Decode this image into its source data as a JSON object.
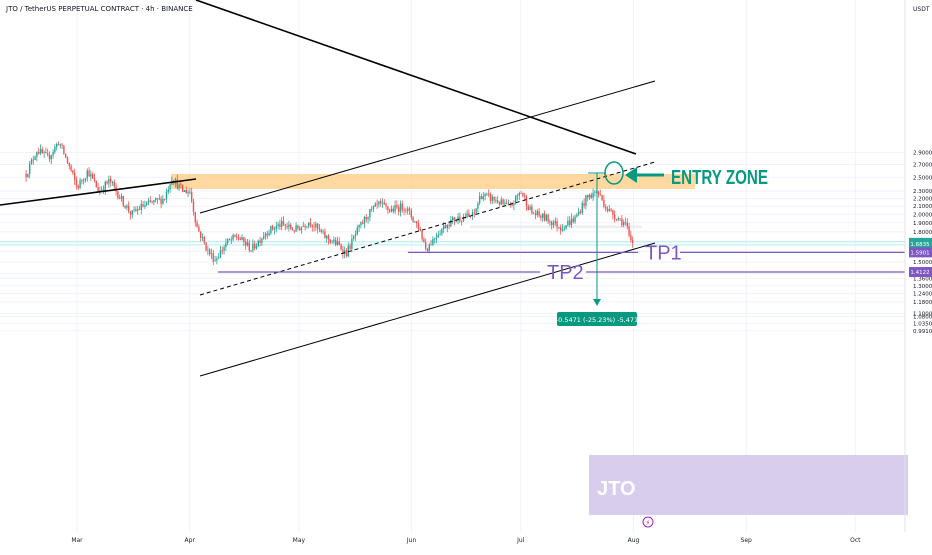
{
  "header": {
    "symbol_line": "JTO / TetherUS PERPETUAL CONTRACT · 4h · BINANCE"
  },
  "price_axis": {
    "unit": "USDT"
  },
  "chart_data": {
    "type": "candlestick",
    "title": "JTO / TetherUS PERPETUAL CONTRACT · 4h · BINANCE",
    "ylabel": "USDT",
    "y_scale": "log",
    "y_ticks": [
      "2.9000",
      "2.7000",
      "2.5000",
      "2.3000",
      "2.2000",
      "2.1000",
      "2.0000",
      "1.9000",
      "1.8000",
      "1.7000",
      "1.6000",
      "1.5000",
      "1.4000",
      "1.3600",
      "1.3000",
      "1.2400",
      "1.1800",
      "1.1000",
      "1.0800",
      "1.0350",
      "0.9910"
    ],
    "x_ticks": [
      "Mar",
      "Apr",
      "May",
      "Jun",
      "Jul",
      "Aug",
      "Sep",
      "Oct"
    ],
    "price_path": [
      [
        "Feb 15",
        2.55
      ],
      [
        "Feb 18",
        2.95
      ],
      [
        "Feb 21",
        2.8
      ],
      [
        "Feb 24",
        3.1
      ],
      [
        "Feb 27",
        2.65
      ],
      [
        "Mar 1",
        2.35
      ],
      [
        "Mar 4",
        2.6
      ],
      [
        "Mar 7",
        2.3
      ],
      [
        "Mar 10",
        2.45
      ],
      [
        "Mar 13",
        2.2
      ],
      [
        "Mar 16",
        2.0
      ],
      [
        "Mar 19",
        2.1
      ],
      [
        "Mar 22",
        2.15
      ],
      [
        "Mar 25",
        2.2
      ],
      [
        "Mar 27",
        2.5
      ],
      [
        "Mar 30",
        2.3
      ],
      [
        "Apr 1",
        2.3
      ],
      [
        "Apr 3",
        1.85
      ],
      [
        "Apr 6",
        1.6
      ],
      [
        "Apr 8",
        1.52
      ],
      [
        "Apr 11",
        1.68
      ],
      [
        "Apr 14",
        1.75
      ],
      [
        "Apr 18",
        1.62
      ],
      [
        "Apr 22",
        1.8
      ],
      [
        "Apr 26",
        1.88
      ],
      [
        "Apr 30",
        1.82
      ],
      [
        "May 4",
        1.92
      ],
      [
        "May 8",
        1.75
      ],
      [
        "May 12",
        1.66
      ],
      [
        "May 14",
        1.58
      ],
      [
        "May 17",
        1.8
      ],
      [
        "May 20",
        2.0
      ],
      [
        "May 23",
        2.12
      ],
      [
        "May 26",
        2.05
      ],
      [
        "May 30",
        2.1
      ],
      [
        "Jun 3",
        1.85
      ],
      [
        "Jun 5",
        1.62
      ],
      [
        "Jun 8",
        1.78
      ],
      [
        "Jun 11",
        1.9
      ],
      [
        "Jun 14",
        1.96
      ],
      [
        "Jun 18",
        1.98
      ],
      [
        "Jun 20",
        2.25
      ],
      [
        "Jun 24",
        2.18
      ],
      [
        "Jun 28",
        2.08
      ],
      [
        "Jul 1",
        2.3
      ],
      [
        "Jul 4",
        2.02
      ],
      [
        "Jul 8",
        1.95
      ],
      [
        "Jul 12",
        1.85
      ],
      [
        "Jul 16",
        1.95
      ],
      [
        "Jul 19",
        2.2
      ],
      [
        "Jul 22",
        2.3
      ],
      [
        "Jul 25",
        2.05
      ],
      [
        "Jul 28",
        1.95
      ],
      [
        "Jul 30",
        1.88
      ],
      [
        "Jul 31",
        1.7
      ],
      [
        "Aug 1",
        1.68
      ]
    ],
    "last_price": "1.6835",
    "countdown": "35:09",
    "annotations": {
      "entry_zone": "ENTRY ZONE",
      "tp1_label": "TP1",
      "tp1_price": "1.5901",
      "tp2_label": "TP2",
      "tp2_price": "1.4122",
      "measure": "-0.5471 (-25.23%) -5,471",
      "watermark": "JTO"
    },
    "colors": {
      "up": "#26a69a",
      "down": "#ef5350",
      "trend": "#000000",
      "tp": "#7e57c2",
      "entry": "#089981",
      "supply_zone": "#ffcc80",
      "watermark_box": "#d1c4e9"
    }
  }
}
